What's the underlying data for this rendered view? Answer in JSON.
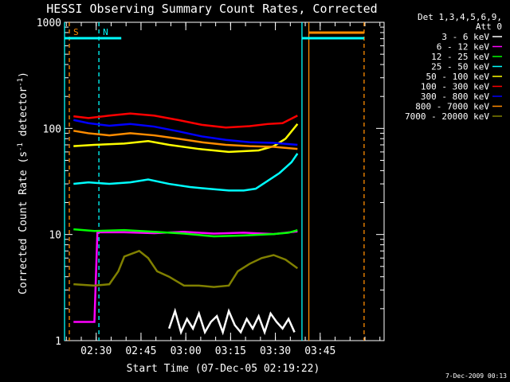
{
  "chart_data": {
    "type": "line",
    "title": "HESSI Observing Summary Count Rates, Corrected",
    "xlabel": "Start Time (07-Dec-05 02:19:22)",
    "ylabel_main": "Corrected Count Rate (s",
    "ylabel_sup1": "-1",
    "ylabel_mid": " detector",
    "ylabel_sup2": "-1",
    "ylabel_end": ")",
    "y_scale": "log",
    "ylim": [
      1,
      1000
    ],
    "x_unit": "minutes after 02:19:22",
    "xlim": [
      0,
      107
    ],
    "x_ticks": [
      {
        "v": 10.6,
        "label": "02:30"
      },
      {
        "v": 25.6,
        "label": "02:45"
      },
      {
        "v": 40.6,
        "label": "03:00"
      },
      {
        "v": 55.6,
        "label": "03:15"
      },
      {
        "v": 70.6,
        "label": "03:30"
      },
      {
        "v": 85.6,
        "label": "03:45"
      }
    ],
    "y_ticks": [
      {
        "v": 1,
        "label": "1"
      },
      {
        "v": 10,
        "label": "10"
      },
      {
        "v": 100,
        "label": "100"
      },
      {
        "v": 1000,
        "label": "1000"
      }
    ],
    "legend_header": [
      "Det 1,3,4,5,6,9,",
      "Att 0"
    ],
    "legend_position": "right",
    "series": [
      {
        "name": "3 - 6 keV",
        "color": "#ffffff",
        "x": [
          35,
          37,
          39,
          41,
          43,
          45,
          47,
          49,
          51,
          53,
          55,
          57,
          59,
          61,
          63,
          65,
          67,
          69,
          71,
          73,
          75,
          77
        ],
        "y": [
          1.3,
          1.9,
          1.2,
          1.6,
          1.3,
          1.8,
          1.2,
          1.5,
          1.7,
          1.2,
          1.9,
          1.4,
          1.2,
          1.6,
          1.3,
          1.7,
          1.2,
          1.8,
          1.5,
          1.3,
          1.6,
          1.2
        ]
      },
      {
        "name": "6 - 12 keV",
        "color": "#ff00ff",
        "x": [
          3,
          10,
          11,
          20,
          30,
          40,
          50,
          60,
          70,
          78
        ],
        "y": [
          1.5,
          1.5,
          10.5,
          10.5,
          10.3,
          10.6,
          10.2,
          10.4,
          10.1,
          10.7
        ]
      },
      {
        "name": "12 - 25 keV",
        "color": "#00ff00",
        "x": [
          3,
          10,
          20,
          30,
          40,
          50,
          60,
          70,
          75,
          78
        ],
        "y": [
          11.2,
          10.8,
          11.0,
          10.6,
          10.2,
          9.6,
          9.8,
          10.1,
          10.4,
          11.0
        ]
      },
      {
        "name": "25 - 50 keV",
        "color": "#00ffff",
        "x": [
          3,
          8,
          15,
          22,
          28,
          35,
          42,
          48,
          55,
          60,
          64,
          68,
          72,
          76,
          78
        ],
        "y": [
          30,
          31,
          30,
          31,
          33,
          30,
          28,
          27,
          26,
          26,
          27,
          32,
          38,
          48,
          58
        ]
      },
      {
        "name": "50 - 100 keV",
        "color": "#ffff00",
        "x": [
          3,
          10,
          20,
          28,
          35,
          45,
          55,
          65,
          70,
          74,
          78
        ],
        "y": [
          68,
          70,
          72,
          76,
          70,
          64,
          60,
          62,
          68,
          80,
          110
        ]
      },
      {
        "name": "100 - 300 keV",
        "color": "#ff0000",
        "x": [
          3,
          8,
          15,
          22,
          30,
          38,
          46,
          54,
          62,
          68,
          73,
          78
        ],
        "y": [
          130,
          125,
          132,
          138,
          132,
          120,
          108,
          102,
          105,
          110,
          112,
          132
        ]
      },
      {
        "name": "300 - 800 keV",
        "color": "#0000ff",
        "x": [
          3,
          8,
          15,
          22,
          30,
          38,
          46,
          54,
          62,
          70,
          78
        ],
        "y": [
          120,
          112,
          106,
          110,
          104,
          94,
          84,
          78,
          74,
          73,
          70
        ]
      },
      {
        "name": "800 - 7000 keV",
        "color": "#ff8c00",
        "x": [
          3,
          8,
          15,
          22,
          30,
          38,
          46,
          54,
          62,
          70,
          78
        ],
        "y": [
          95,
          90,
          86,
          90,
          86,
          80,
          74,
          70,
          68,
          67,
          64
        ]
      },
      {
        "name": "7000 - 20000 keV",
        "color": "#808000",
        "x": [
          3,
          10,
          15,
          18,
          20,
          25,
          28,
          31,
          35,
          40,
          45,
          50,
          55,
          58,
          62,
          66,
          70,
          74,
          78
        ],
        "y": [
          3.4,
          3.3,
          3.4,
          4.5,
          6.2,
          7.0,
          6.0,
          4.5,
          4.0,
          3.3,
          3.3,
          3.2,
          3.3,
          4.5,
          5.3,
          6.0,
          6.4,
          5.8,
          4.8
        ]
      }
    ],
    "annotations": [
      {
        "label": "S",
        "color": "#ff8c00",
        "x": 1.6
      },
      {
        "label": "N",
        "color": "#00ffff",
        "x": 11.5
      }
    ],
    "vertical_markers": [
      {
        "x": 0,
        "color": "#00ffff",
        "style": "solid"
      },
      {
        "x": 1.6,
        "color": "#ff8c00",
        "style": "dashed"
      },
      {
        "x": 11.5,
        "color": "#00ffff",
        "style": "dashed"
      },
      {
        "x": 79.5,
        "color": "#00ffff",
        "style": "solid"
      },
      {
        "x": 81.8,
        "color": "#ff8c00",
        "style": "solid"
      },
      {
        "x": 100.3,
        "color": "#ff8c00",
        "style": "dashed"
      }
    ],
    "top_bands": [
      {
        "x0": 0,
        "x1": 19,
        "color": "#00ffff"
      },
      {
        "x0": 79.5,
        "x1": 100.3,
        "color": "#00ffff"
      },
      {
        "x0": 81.8,
        "x1": 100.3,
        "color": "#ff8c00"
      }
    ],
    "footer_date": "7-Dec-2009 00:13"
  }
}
